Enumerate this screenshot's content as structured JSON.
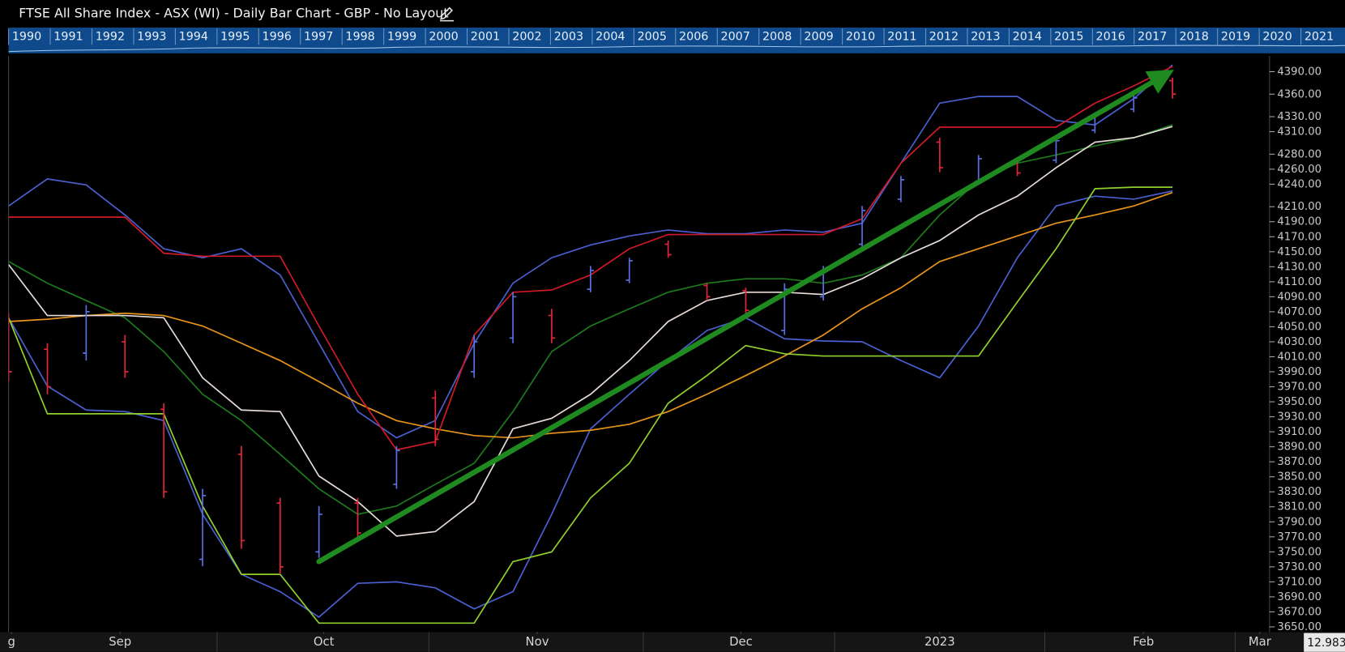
{
  "chart_data": {
    "type": "ohlc",
    "title": "FTSE All Share Index - ASX (WI) - Daily Bar Chart - GBP - No Layout",
    "navigator_years": [
      "1990",
      "1991",
      "1992",
      "1993",
      "1994",
      "1995",
      "1996",
      "1997",
      "1998",
      "1999",
      "2000",
      "2001",
      "2002",
      "2003",
      "2004",
      "2005",
      "2006",
      "2007",
      "2008",
      "2009",
      "2010",
      "2011",
      "2012",
      "2013",
      "2014",
      "2015",
      "2016",
      "2017",
      "2018",
      "2019",
      "2020",
      "2021"
    ],
    "cursor_value": "12.983",
    "xlim": [
      0,
      130
    ],
    "xticks": [
      {
        "value": 0.3,
        "label": "g"
      },
      {
        "value": 11.5,
        "label": "Sep"
      },
      {
        "value": 32.5,
        "label": "Oct"
      },
      {
        "value": 54.5,
        "label": "Nov"
      },
      {
        "value": 75.5,
        "label": "Dec"
      },
      {
        "value": 96,
        "label": "2023"
      },
      {
        "value": 117,
        "label": "Feb"
      },
      {
        "value": 129,
        "label": "Mar"
      }
    ],
    "ylim": [
      3643,
      4411
    ],
    "yticks": [
      {
        "value": 4390,
        "label": "4390.00"
      },
      {
        "value": 4360,
        "label": "4360.00"
      },
      {
        "value": 4330,
        "label": "4330.00"
      },
      {
        "value": 4310,
        "label": "4310.00"
      },
      {
        "value": 4280,
        "label": "4280.00"
      },
      {
        "value": 4260,
        "label": "4260.00"
      },
      {
        "value": 4240,
        "label": "4240.00"
      },
      {
        "value": 4210,
        "label": "4210.00"
      },
      {
        "value": 4190,
        "label": "4190.00"
      },
      {
        "value": 4170,
        "label": "4170.00"
      },
      {
        "value": 4150,
        "label": "4150.00"
      },
      {
        "value": 4130,
        "label": "4130.00"
      },
      {
        "value": 4110,
        "label": "4110.00"
      },
      {
        "value": 4090,
        "label": "4090.00"
      },
      {
        "value": 4070,
        "label": "4070.00"
      },
      {
        "value": 4050,
        "label": "4050.00"
      },
      {
        "value": 4030,
        "label": "4030.00"
      },
      {
        "value": 4010,
        "label": "4010.00"
      },
      {
        "value": 3990,
        "label": "3990.00"
      },
      {
        "value": 3970,
        "label": "3970.00"
      },
      {
        "value": 3950,
        "label": "3950.00"
      },
      {
        "value": 3930,
        "label": "3930.00"
      },
      {
        "value": 3910,
        "label": "3910.00"
      },
      {
        "value": 3890,
        "label": "3890.00"
      },
      {
        "value": 3870,
        "label": "3870.00"
      },
      {
        "value": 3850,
        "label": "3850.00"
      },
      {
        "value": 3830,
        "label": "3830.00"
      },
      {
        "value": 3810,
        "label": "3810.00"
      },
      {
        "value": 3790,
        "label": "3790.00"
      },
      {
        "value": 3770,
        "label": "3770.00"
      },
      {
        "value": 3750,
        "label": "3750.00"
      },
      {
        "value": 3730,
        "label": "3730.00"
      },
      {
        "value": 3710,
        "label": "3710.00"
      },
      {
        "value": 3690,
        "label": "3690.00"
      },
      {
        "value": 3670,
        "label": "3670.00"
      },
      {
        "value": 3650,
        "label": "3650.00"
      }
    ],
    "x": [
      0,
      4,
      8,
      12,
      16,
      20,
      24,
      28,
      32,
      36,
      40,
      44,
      48,
      52,
      56,
      60,
      64,
      68,
      72,
      76,
      80,
      84,
      88,
      92,
      96,
      100,
      104,
      108,
      112,
      116,
      120
    ],
    "open": [
      4050,
      4020,
      4015,
      4030,
      3940,
      3740,
      3880,
      3815,
      3750,
      3815,
      3840,
      3955,
      3990,
      4035,
      4065,
      4100,
      4112,
      4160,
      4105,
      4098,
      4045,
      4090,
      4160,
      4220,
      4296,
      4244,
      4270,
      4272,
      4312,
      4340,
      4378
    ],
    "high": [
      4068,
      4028,
      4079,
      4039,
      3948,
      3834,
      3891,
      3822,
      3811,
      3822,
      3891,
      3965,
      4039,
      4096,
      4074,
      4131,
      4142,
      4165,
      4108,
      4102,
      4108,
      4131,
      4211,
      4251,
      4302,
      4279,
      4274,
      4302,
      4336,
      4359,
      4382
    ],
    "low": [
      3977,
      3960,
      4005,
      3982,
      3822,
      3731,
      3754,
      3720,
      3742,
      3765,
      3834,
      3891,
      3982,
      4028,
      4028,
      4096,
      4108,
      4142,
      4085,
      4068,
      4039,
      4085,
      4154,
      4216,
      4256,
      4239,
      4251,
      4268,
      4308,
      4336,
      4354
    ],
    "close": [
      3990,
      3970,
      4070,
      3990,
      3830,
      3825,
      3765,
      3730,
      3800,
      3775,
      3885,
      3900,
      4030,
      4090,
      4035,
      4125,
      4138,
      4146,
      4090,
      4072,
      4100,
      4125,
      4205,
      4246,
      4262,
      4274,
      4255,
      4298,
      4332,
      4355,
      4360
    ],
    "up_color": "#5a6fe0",
    "down_color": "#e0263a",
    "series": [
      {
        "color": "#4a5fd0",
        "values": [
          4211,
          4247,
          4239,
          4199,
          4154,
          4142,
          4154,
          4119,
          4028,
          3937,
          3902,
          3925,
          4028,
          4108,
          4142,
          4159,
          4171,
          4179,
          4174,
          4174,
          4179,
          4176,
          4188,
          4268,
          4348,
          4357,
          4357,
          4325,
          4319,
          4354,
          4399
        ]
      },
      {
        "color": "#4a5fd0",
        "values": [
          4062,
          3971,
          3939,
          3937,
          3925,
          3800,
          3720,
          3697,
          3663,
          3708,
          3710,
          3702,
          3674,
          3697,
          3800,
          3914,
          3960,
          4005,
          4045,
          4062,
          4034,
          4031,
          4030,
          4005,
          3982,
          4051,
          4142,
          4211,
          4224,
          4220,
          4231
        ]
      },
      {
        "color": "#1d7a1d",
        "values": [
          4137,
          4108,
          4085,
          4062,
          4017,
          3960,
          3925,
          3880,
          3834,
          3800,
          3811,
          3840,
          3868,
          3937,
          4017,
          4051,
          4074,
          4096,
          4108,
          4114,
          4114,
          4108,
          4119,
          4142,
          4199,
          4245,
          4268,
          4279,
          4291,
          4302,
          4319
        ]
      },
      {
        "color": "#e8941a",
        "values": [
          4057,
          4060,
          4065,
          4068,
          4065,
          4051,
          4028,
          4005,
          3977,
          3948,
          3925,
          3914,
          3905,
          3902,
          3908,
          3912,
          3920,
          3937,
          3960,
          3985,
          4011,
          4039,
          4074,
          4102,
          4137,
          4154,
          4171,
          4188,
          4199,
          4211,
          4229
        ]
      },
      {
        "color": "#e6dbd6",
        "values": [
          4133,
          4065,
          4065,
          4065,
          4062,
          3982,
          3939,
          3937,
          3851,
          3817,
          3771,
          3777,
          3817,
          3914,
          3928,
          3960,
          4005,
          4057,
          4085,
          4096,
          4096,
          4093,
          4114,
          4142,
          4165,
          4199,
          4224,
          4262,
          4296,
          4302,
          4317
        ]
      },
      {
        "color": "#d11a26",
        "values": [
          4196,
          4196,
          4196,
          4196,
          4148,
          4144,
          4144,
          4144,
          4051,
          3960,
          3886,
          3897,
          4039,
          4096,
          4099,
          4119,
          4154,
          4173,
          4173,
          4173,
          4173,
          4173,
          4194,
          4268,
          4316,
          4316,
          4316,
          4316,
          4348,
          4371,
          4397
        ]
      },
      {
        "color": "#8fd12a",
        "values": [
          4062,
          3934,
          3934,
          3934,
          3934,
          3811,
          3720,
          3720,
          3655,
          3655,
          3655,
          3655,
          3655,
          3737,
          3750,
          3822,
          3868,
          3948,
          3985,
          4025,
          4014,
          4011,
          4011,
          4011,
          4011,
          4011,
          4083,
          4154,
          4234,
          4236,
          4236
        ]
      }
    ],
    "trendline": {
      "color": "#1f8a1f",
      "x": [
        32,
        119
      ],
      "y": [
        3737,
        4384
      ]
    }
  }
}
